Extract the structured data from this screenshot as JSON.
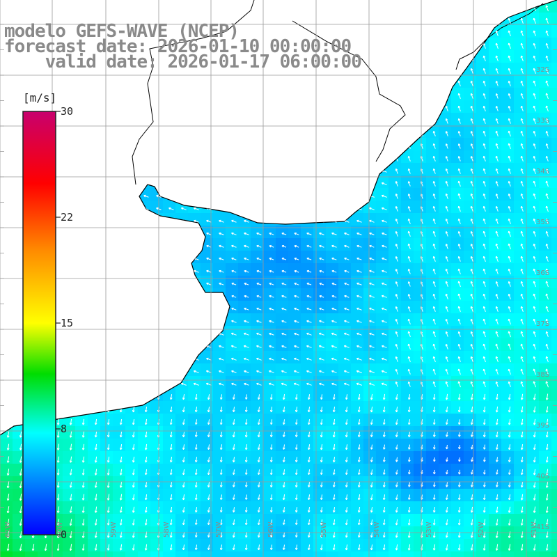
{
  "title": {
    "line1": "modelo GEFS-WAVE (NCEP)",
    "line2": "forecast date: 2026-01-10 00:00:00",
    "line3": "    valid date: 2026-01-17 06:00:00"
  },
  "colorbar": {
    "units": "[m/s]",
    "ticks": [
      "30",
      "22",
      "15",
      "8",
      "0"
    ],
    "colors": [
      "#c8006e",
      "#ff0000",
      "#ff8c00",
      "#ffff00",
      "#00dd00",
      "#00ffff",
      "#0000ff"
    ]
  },
  "grid_labels": {
    "lat": [
      "32S",
      "33S",
      "34S",
      "35S",
      "36S",
      "37S",
      "38S",
      "39S",
      "40S",
      "41S"
    ],
    "lon": [
      "61W",
      "60W",
      "59W",
      "58W",
      "57W",
      "56W",
      "55W",
      "54W",
      "53W",
      "52W",
      "51W"
    ]
  },
  "colors": {
    "land": "#ffffff",
    "coast": "#000000",
    "grid": "#9a9a9a"
  }
}
